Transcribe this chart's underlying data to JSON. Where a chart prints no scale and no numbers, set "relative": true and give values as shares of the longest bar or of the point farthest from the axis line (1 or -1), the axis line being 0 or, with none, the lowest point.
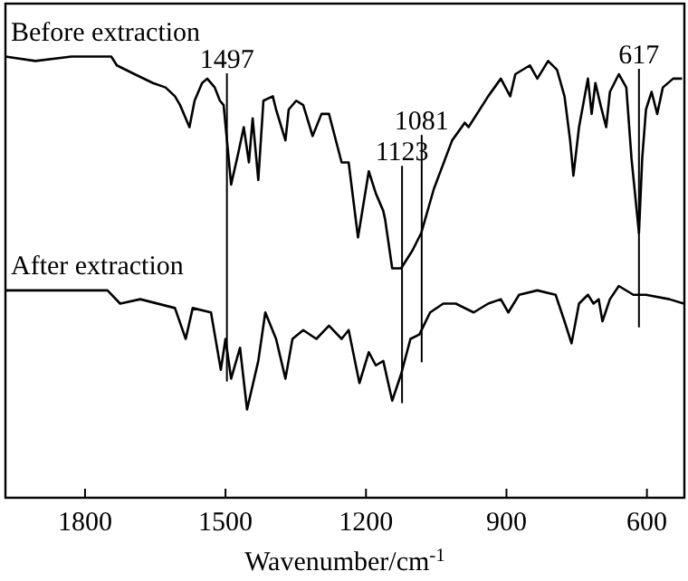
{
  "chart_data": {
    "type": "line",
    "relative": true,
    "xlabel": "Wavenumber/cm$^{-1}$",
    "xlim": [
      1970,
      520
    ],
    "xticks": [
      1800,
      1500,
      1200,
      900,
      600
    ],
    "tick_labels": "x",
    "grid": false,
    "line_style": "solid",
    "series": [
      {
        "name": "Before extraction",
        "color": "#000000",
        "x": [
          1970,
          1906,
          1829,
          1744,
          1732,
          1694,
          1655,
          1628,
          1608,
          1597,
          1577,
          1566,
          1550,
          1539,
          1523,
          1512,
          1504,
          1488,
          1473,
          1461,
          1450,
          1442,
          1430,
          1419,
          1399,
          1392,
          1372,
          1365,
          1349,
          1334,
          1314,
          1295,
          1279,
          1252,
          1237,
          1217,
          1194,
          1179,
          1163,
          1159,
          1144,
          1125,
          1101,
          1082,
          1055,
          1016,
          989,
          981,
          939,
          912,
          892,
          881,
          850,
          834,
          811,
          792,
          776,
          764,
          757,
          745,
          726,
          718,
          710,
          699,
          687,
          679,
          660,
          644,
          633,
          617,
          610,
          602,
          590,
          578,
          566,
          544,
          525
        ],
        "values": [
          1.0,
          0.99,
          1.0,
          1.0,
          0.98,
          0.96,
          0.94,
          0.93,
          0.91,
          0.89,
          0.84,
          0.9,
          0.94,
          0.95,
          0.93,
          0.9,
          0.89,
          0.71,
          0.78,
          0.84,
          0.76,
          0.86,
          0.72,
          0.9,
          0.91,
          0.88,
          0.81,
          0.88,
          0.9,
          0.89,
          0.82,
          0.87,
          0.87,
          0.76,
          0.76,
          0.59,
          0.74,
          0.69,
          0.65,
          0.63,
          0.52,
          0.52,
          0.56,
          0.6,
          0.7,
          0.81,
          0.85,
          0.84,
          0.91,
          0.95,
          0.91,
          0.96,
          0.98,
          0.95,
          0.99,
          0.97,
          0.91,
          0.81,
          0.73,
          0.84,
          0.95,
          0.87,
          0.94,
          0.89,
          0.84,
          0.92,
          0.96,
          0.93,
          0.77,
          0.6,
          0.77,
          0.88,
          0.92,
          0.87,
          0.93,
          0.95,
          0.95
        ]
      },
      {
        "name": "After extraction",
        "color": "#000000",
        "x": [
          1970,
          1752,
          1725,
          1682,
          1608,
          1585,
          1570,
          1531,
          1510,
          1500,
          1488,
          1469,
          1454,
          1430,
          1415,
          1392,
          1372,
          1357,
          1334,
          1306,
          1279,
          1252,
          1237,
          1214,
          1194,
          1179,
          1163,
          1144,
          1125,
          1105,
          1086,
          1063,
          1035,
          1008,
          970,
          939,
          912,
          896,
          873,
          834,
          795,
          776,
          761,
          745,
          726,
          714,
          703,
          695,
          679,
          660,
          629,
          602,
          552,
          521
        ],
        "values": [
          0.47,
          0.47,
          0.44,
          0.45,
          0.43,
          0.36,
          0.43,
          0.42,
          0.29,
          0.36,
          0.27,
          0.34,
          0.2,
          0.31,
          0.42,
          0.36,
          0.27,
          0.36,
          0.38,
          0.36,
          0.39,
          0.36,
          0.38,
          0.26,
          0.33,
          0.3,
          0.31,
          0.22,
          0.28,
          0.36,
          0.37,
          0.42,
          0.44,
          0.44,
          0.42,
          0.44,
          0.45,
          0.42,
          0.46,
          0.47,
          0.46,
          0.4,
          0.35,
          0.44,
          0.46,
          0.44,
          0.45,
          0.4,
          0.45,
          0.48,
          0.46,
          0.46,
          0.45,
          0.44
        ]
      }
    ],
    "ref_lines": [
      {
        "axis": "x",
        "value": 1497,
        "label": "1497"
      },
      {
        "axis": "x",
        "value": 1123,
        "label": "1123"
      },
      {
        "axis": "x",
        "value": 1081,
        "label": "1081"
      },
      {
        "axis": "x",
        "value": 617,
        "label": "617"
      }
    ]
  }
}
